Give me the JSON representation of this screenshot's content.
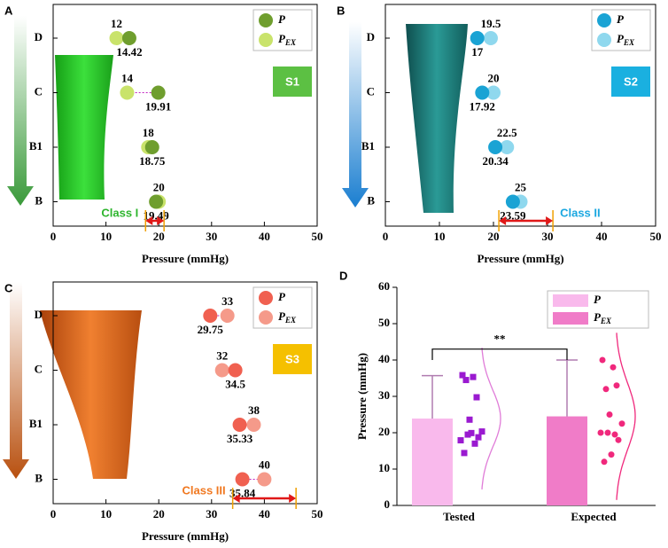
{
  "chart_data": [
    {
      "type": "dot",
      "panel": "A",
      "badge": "S1",
      "badge_color": "#5cc043",
      "class_label": "Class I",
      "class_color": "#2db52d",
      "class_range": [
        17.5,
        21
      ],
      "xlabel": "Pressure (mmHg)",
      "categories": [
        "D",
        "C",
        "B1",
        "B"
      ],
      "xlim": [
        0,
        50
      ],
      "xticks": [
        0,
        10,
        20,
        30,
        40,
        50
      ],
      "series": [
        {
          "name": "P",
          "color": "#6f9e2e",
          "values": [
            14.42,
            19.91,
            18.75,
            19.49
          ]
        },
        {
          "name": "PEX",
          "color": "#c9e36b",
          "values": [
            12,
            14,
            18,
            20
          ]
        }
      ]
    },
    {
      "type": "dot",
      "panel": "B",
      "badge": "S2",
      "badge_color": "#1ab0e0",
      "class_label": "Class II",
      "class_color": "#1aa7e0",
      "class_range": [
        21,
        31
      ],
      "xlabel": "Pressure (mmHg)",
      "categories": [
        "D",
        "C",
        "B1",
        "B"
      ],
      "xlim": [
        0,
        50
      ],
      "xticks": [
        0,
        10,
        20,
        30,
        40,
        50
      ],
      "series": [
        {
          "name": "P",
          "color": "#1aa3d4",
          "values": [
            17,
            17.92,
            20.34,
            23.59
          ]
        },
        {
          "name": "PEX",
          "color": "#8fd8ee",
          "values": [
            19.5,
            20,
            22.5,
            25
          ]
        }
      ]
    },
    {
      "type": "dot",
      "panel": "C",
      "badge": "S3",
      "badge_color": "#f5c000",
      "class_label": "Class III",
      "class_color": "#f07820",
      "class_range": [
        34,
        46
      ],
      "xlabel": "Pressure (mmHg)",
      "categories": [
        "D",
        "C",
        "B1",
        "B"
      ],
      "xlim": [
        0,
        50
      ],
      "xticks": [
        0,
        10,
        20,
        30,
        40,
        50
      ],
      "series": [
        {
          "name": "P",
          "color": "#f06050",
          "values": [
            29.75,
            34.5,
            35.33,
            35.84
          ]
        },
        {
          "name": "PEX",
          "color": "#f59a8a",
          "values": [
            33,
            32,
            38,
            40
          ]
        }
      ]
    },
    {
      "type": "bar",
      "panel": "D",
      "ylabel": "Pressure (mmHg)",
      "categories": [
        "Tested",
        "Expected"
      ],
      "ylim": [
        0,
        60
      ],
      "yticks": [
        0,
        10,
        20,
        30,
        40,
        50,
        60
      ],
      "annotation": {
        "text": "**",
        "y": 43
      },
      "series": [
        {
          "name": "P",
          "color": "#f9b9ec",
          "point_color": "#9a1ad0",
          "curve_color": "#e07cd8",
          "values": [
            23.9,
            null
          ],
          "errors": [
            11.8,
            null
          ],
          "points": [
            14.42,
            19.91,
            18.75,
            19.49,
            17,
            17.92,
            20.34,
            23.59,
            29.75,
            34.5,
            35.33,
            35.84
          ]
        },
        {
          "name": "PEX",
          "color": "#f07cc8",
          "point_color": "#f0287c",
          "curve_color": "#f0287c",
          "values": [
            null,
            24.5
          ],
          "errors": [
            null,
            15.5
          ],
          "points": [
            12,
            14,
            18,
            20,
            19.5,
            20,
            22.5,
            25,
            33,
            32,
            38,
            40
          ]
        }
      ]
    }
  ]
}
